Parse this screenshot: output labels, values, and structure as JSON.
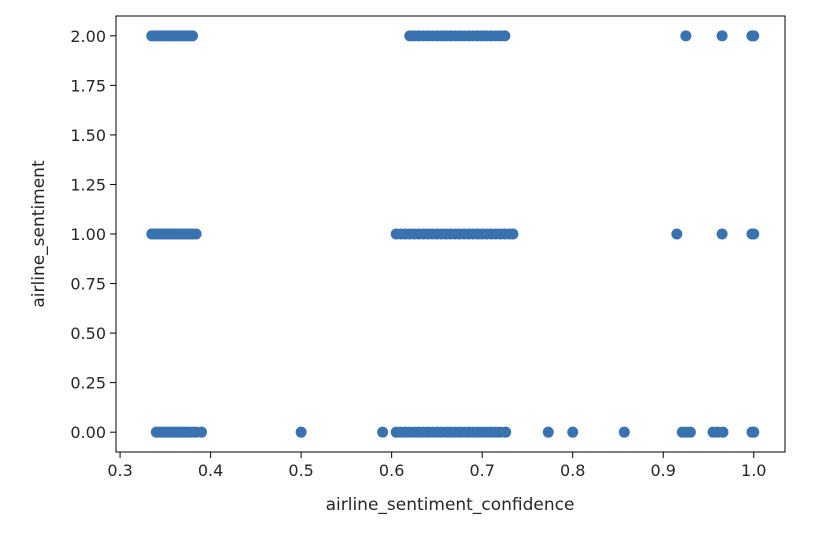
{
  "chart_data": {
    "type": "scatter",
    "title": "",
    "xlabel": "airline_sentiment_confidence",
    "ylabel": "airline_sentiment",
    "xlim": [
      0.2955,
      1.0345
    ],
    "ylim": [
      -0.1,
      2.1
    ],
    "xticks": [
      0.3,
      0.4,
      0.5,
      0.6,
      0.7,
      0.8,
      0.9,
      1.0
    ],
    "xtick_labels": [
      "0.3",
      "0.4",
      "0.5",
      "0.6",
      "0.7",
      "0.8",
      "0.9",
      "1.0"
    ],
    "yticks": [
      0.0,
      0.25,
      0.5,
      0.75,
      1.0,
      1.25,
      1.5,
      1.75,
      2.0
    ],
    "ytick_labels": [
      "0.00",
      "0.25",
      "0.50",
      "0.75",
      "1.00",
      "1.25",
      "1.50",
      "1.75",
      "2.00"
    ],
    "grid": false,
    "color": "#3a72b0",
    "series": [
      {
        "values_by_level": [
          {
            "y": 2,
            "x": [
              0.335,
              0.338,
              0.341,
              0.344,
              0.347,
              0.35,
              0.353,
              0.356,
              0.359,
              0.362,
              0.365,
              0.368,
              0.371,
              0.374,
              0.377,
              0.38,
              0.62,
              0.625,
              0.63,
              0.635,
              0.64,
              0.645,
              0.65,
              0.655,
              0.66,
              0.665,
              0.67,
              0.675,
              0.68,
              0.685,
              0.69,
              0.695,
              0.7,
              0.705,
              0.71,
              0.715,
              0.72,
              0.725,
              0.925,
              0.965,
              0.998,
              1.0
            ]
          },
          {
            "y": 1,
            "x": [
              0.335,
              0.338,
              0.341,
              0.344,
              0.347,
              0.35,
              0.353,
              0.356,
              0.359,
              0.362,
              0.365,
              0.368,
              0.371,
              0.374,
              0.377,
              0.38,
              0.384,
              0.605,
              0.61,
              0.615,
              0.62,
              0.625,
              0.63,
              0.635,
              0.64,
              0.645,
              0.65,
              0.655,
              0.66,
              0.665,
              0.67,
              0.675,
              0.68,
              0.685,
              0.69,
              0.695,
              0.7,
              0.705,
              0.71,
              0.715,
              0.72,
              0.725,
              0.73,
              0.734,
              0.915,
              0.965,
              0.998,
              1.0
            ]
          },
          {
            "y": 0,
            "x": [
              0.34,
              0.343,
              0.346,
              0.349,
              0.352,
              0.355,
              0.358,
              0.361,
              0.364,
              0.367,
              0.37,
              0.373,
              0.376,
              0.38,
              0.384,
              0.39,
              0.5,
              0.59,
              0.605,
              0.61,
              0.615,
              0.62,
              0.625,
              0.63,
              0.635,
              0.64,
              0.645,
              0.65,
              0.655,
              0.66,
              0.665,
              0.67,
              0.675,
              0.68,
              0.685,
              0.69,
              0.695,
              0.7,
              0.705,
              0.71,
              0.715,
              0.72,
              0.726,
              0.773,
              0.8,
              0.857,
              0.921,
              0.926,
              0.93,
              0.955,
              0.96,
              0.966,
              0.998,
              1.0
            ]
          }
        ]
      }
    ]
  }
}
